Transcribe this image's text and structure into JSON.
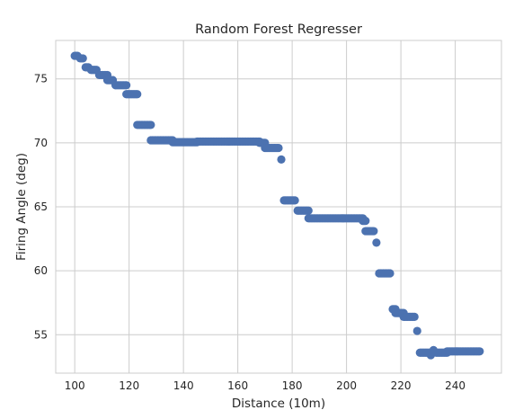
{
  "chart_data": {
    "type": "scatter",
    "title": "Random Forest Regresser",
    "xlabel": "Distance (10m)",
    "ylabel": "Firing Angle (deg)",
    "xlim": [
      93,
      257
    ],
    "ylim": [
      52.0,
      78.0
    ],
    "xticks": [
      100,
      120,
      140,
      160,
      180,
      200,
      220,
      240
    ],
    "yticks": [
      55,
      60,
      65,
      70,
      75
    ],
    "grid": true,
    "marker_color": "#4c72b0",
    "segments": [
      {
        "x_start": 100,
        "x_end": 101,
        "y": 76.8
      },
      {
        "x_start": 102,
        "x_end": 103,
        "y": 76.6
      },
      {
        "x_start": 104,
        "x_end": 105,
        "y": 75.9
      },
      {
        "x_start": 106,
        "x_end": 108,
        "y": 75.7
      },
      {
        "x_start": 109,
        "x_end": 112,
        "y": 75.3
      },
      {
        "x_start": 112,
        "x_end": 114,
        "y": 74.9
      },
      {
        "x_start": 115,
        "x_end": 119,
        "y": 74.5
      },
      {
        "x_start": 119,
        "x_end": 123,
        "y": 73.8
      },
      {
        "x_start": 123,
        "x_end": 128,
        "y": 71.4
      },
      {
        "x_start": 128,
        "x_end": 136,
        "y": 70.2
      },
      {
        "x_start": 136,
        "x_end": 145,
        "y": 70.05
      },
      {
        "x_start": 145,
        "x_end": 168,
        "y": 70.1
      },
      {
        "x_start": 168,
        "x_end": 170,
        "y": 70.0
      },
      {
        "x_start": 170,
        "x_end": 175,
        "y": 69.6
      },
      {
        "x_start": 176,
        "x_end": 176,
        "y": 68.7
      },
      {
        "x_start": 177,
        "x_end": 181,
        "y": 65.5
      },
      {
        "x_start": 182,
        "x_end": 186,
        "y": 64.7
      },
      {
        "x_start": 186,
        "x_end": 206,
        "y": 64.1
      },
      {
        "x_start": 206,
        "x_end": 207,
        "y": 63.9
      },
      {
        "x_start": 207,
        "x_end": 210,
        "y": 63.1
      },
      {
        "x_start": 211,
        "x_end": 211,
        "y": 62.2
      },
      {
        "x_start": 212,
        "x_end": 216,
        "y": 59.8
      },
      {
        "x_start": 217,
        "x_end": 218,
        "y": 57.0
      },
      {
        "x_start": 218,
        "x_end": 221,
        "y": 56.7
      },
      {
        "x_start": 221,
        "x_end": 225,
        "y": 56.4
      },
      {
        "x_start": 226,
        "x_end": 226,
        "y": 55.3
      },
      {
        "x_start": 227,
        "x_end": 231,
        "y": 53.6
      },
      {
        "x_start": 231,
        "x_end": 231,
        "y": 53.4
      },
      {
        "x_start": 232,
        "x_end": 232,
        "y": 53.8
      },
      {
        "x_start": 233,
        "x_end": 237,
        "y": 53.6
      },
      {
        "x_start": 237,
        "x_end": 249,
        "y": 53.7
      }
    ]
  }
}
